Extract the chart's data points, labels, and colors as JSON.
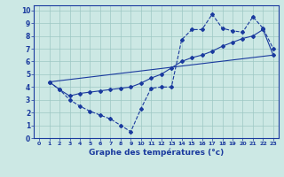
{
  "title": "Graphe des températures (°c)",
  "background_color": "#cce8e4",
  "line_color": "#1a3a9e",
  "grid_color": "#9ec8c4",
  "xlim": [
    -0.5,
    23.5
  ],
  "ylim": [
    0,
    10.4
  ],
  "xticks": [
    0,
    1,
    2,
    3,
    4,
    5,
    6,
    7,
    8,
    9,
    10,
    11,
    12,
    13,
    14,
    15,
    16,
    17,
    18,
    19,
    20,
    21,
    22,
    23
  ],
  "yticks": [
    0,
    1,
    2,
    3,
    4,
    5,
    6,
    7,
    8,
    9,
    10
  ],
  "line1_x": [
    1,
    2,
    3,
    4,
    5,
    6,
    7,
    8,
    9,
    10,
    11,
    12,
    13,
    14,
    15,
    16,
    17,
    18,
    19,
    20,
    21,
    22,
    23
  ],
  "line1_y": [
    4.4,
    3.8,
    3.0,
    2.5,
    2.1,
    1.8,
    1.5,
    1.0,
    0.5,
    2.3,
    3.9,
    4.0,
    4.0,
    7.7,
    8.5,
    8.5,
    9.7,
    8.6,
    8.4,
    8.3,
    9.5,
    8.6,
    7.0
  ],
  "line2_x": [
    1,
    2,
    3,
    4,
    5,
    6,
    7,
    8,
    9,
    10,
    11,
    12,
    13,
    14,
    15,
    16,
    17,
    18,
    19,
    20,
    21,
    22,
    23
  ],
  "line2_y": [
    4.4,
    3.8,
    3.3,
    3.5,
    3.6,
    3.7,
    3.8,
    3.9,
    4.0,
    4.3,
    4.7,
    5.0,
    5.5,
    6.0,
    6.3,
    6.5,
    6.8,
    7.2,
    7.5,
    7.8,
    8.0,
    8.5,
    6.5
  ],
  "line3_x": [
    1,
    23
  ],
  "line3_y": [
    4.4,
    6.5
  ]
}
